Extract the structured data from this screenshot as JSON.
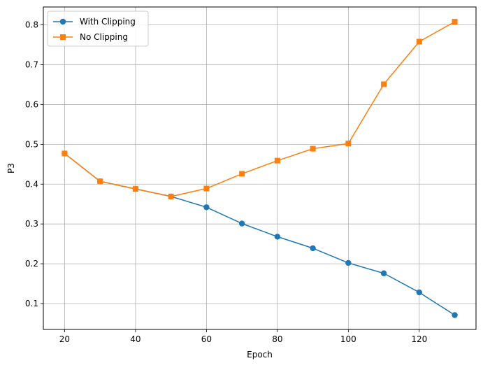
{
  "chart_data": {
    "type": "line",
    "title": "",
    "xlabel": "Epoch",
    "ylabel": "P3",
    "xlim": [
      14,
      136
    ],
    "ylim": [
      0.035,
      0.845
    ],
    "xticks": [
      20,
      40,
      60,
      80,
      100,
      120
    ],
    "yticks": [
      0.1,
      0.2,
      0.3,
      0.4,
      0.5,
      0.6,
      0.7,
      0.8
    ],
    "xtick_labels": [
      "20",
      "40",
      "60",
      "80",
      "100",
      "120"
    ],
    "ytick_labels": [
      "0.1",
      "0.2",
      "0.3",
      "0.4",
      "0.5",
      "0.6",
      "0.7",
      "0.8"
    ],
    "grid": true,
    "legend_position": "top-left",
    "x": [
      20,
      30,
      40,
      50,
      60,
      70,
      80,
      90,
      100,
      110,
      120,
      130
    ],
    "series": [
      {
        "name": "With Clipping",
        "color": "#1f77b4",
        "marker": "circle",
        "values": [
          0.477,
          0.407,
          0.388,
          0.369,
          0.342,
          0.301,
          0.268,
          0.239,
          0.202,
          0.176,
          0.128,
          0.071
        ]
      },
      {
        "name": "No Clipping",
        "color": "#ff7f0e",
        "marker": "square",
        "values": [
          0.477,
          0.407,
          0.388,
          0.369,
          0.389,
          0.426,
          0.459,
          0.489,
          0.502,
          0.651,
          0.758,
          0.808
        ]
      }
    ]
  }
}
